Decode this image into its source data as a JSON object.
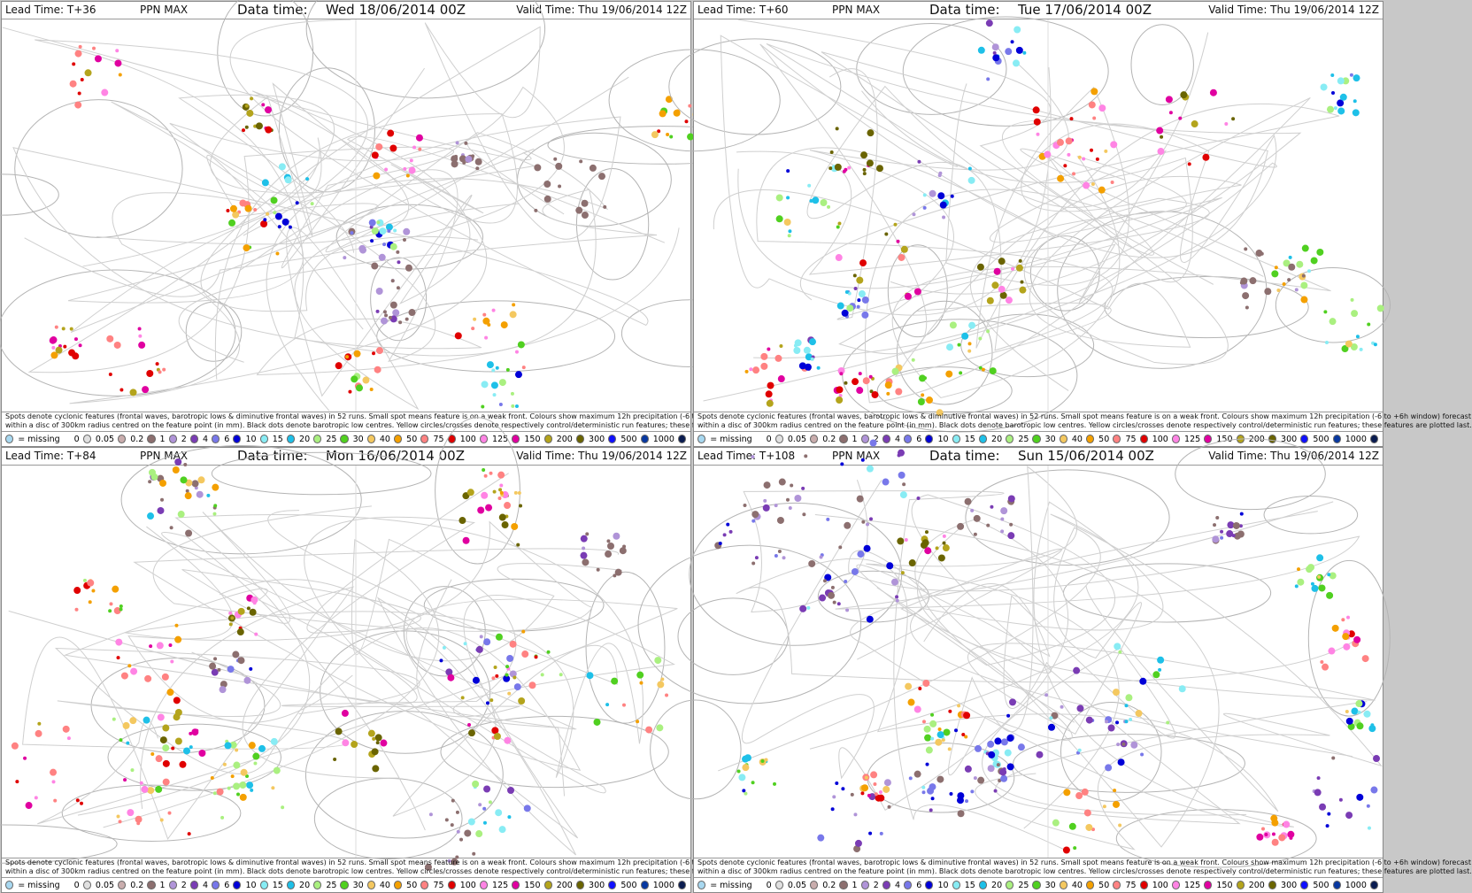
{
  "panels": [
    {
      "lead_time": "Lead Time: T+36",
      "product": "PPN MAX",
      "data_time_label": "Data time:",
      "data_time": "Wed 18/06/2014 00Z",
      "valid_time": "Valid Time: Thu 19/06/2014 12Z"
    },
    {
      "lead_time": "Lead Time: T+60",
      "product": "PPN MAX",
      "data_time_label": "Data time:",
      "data_time": "Tue 17/06/2014 00Z",
      "valid_time": "Valid Time: Thu 19/06/2014 12Z"
    },
    {
      "lead_time": "Lead Time: T+84",
      "product": "PPN MAX",
      "data_time_label": "Data time:",
      "data_time": "Mon 16/06/2014 00Z",
      "valid_time": "Valid Time: Thu 19/06/2014 12Z"
    },
    {
      "lead_time": "Lead Time: T+108",
      "product": "PPN MAX",
      "data_time_label": "Data time:",
      "data_time": "Sun 15/06/2014 00Z",
      "valid_time": "Valid Time: Thu 19/06/2014 12Z"
    }
  ],
  "caption": [
    "Spots denote cyclonic features (frontal waves, barotropic lows & diminutive frontal waves) in 52 runs. Small spot means feature is on a weak front. Colours show maximum 12h precipitation (-6 to +6h window) forecast",
    "within a disc of 300km radius centred on the feature point (in mm). Black dots denote barotropic low centres. Yellow circles/crosses denote respectively control/deterministic run features; these features are plotted last."
  ],
  "legend": {
    "missing": {
      "label": "= missing",
      "color": "#a8d8f0"
    },
    "items": [
      {
        "label": "0",
        "color": "#e0e0e0"
      },
      {
        "label": "0.05",
        "color": "#c9adad"
      },
      {
        "label": "0.2",
        "color": "#8c6f6f"
      },
      {
        "label": "1",
        "color": "#b094d8"
      },
      {
        "label": "2",
        "color": "#7a3cb4"
      },
      {
        "label": "4",
        "color": "#7878ea"
      },
      {
        "label": "6",
        "color": "#0000d8"
      },
      {
        "label": "10",
        "color": "#88ecf4"
      },
      {
        "label": "15",
        "color": "#1ec0e8"
      },
      {
        "label": "20",
        "color": "#aaf080"
      },
      {
        "label": "25",
        "color": "#50d020"
      },
      {
        "label": "30",
        "color": "#f4c860"
      },
      {
        "label": "40",
        "color": "#f4a000"
      },
      {
        "label": "50",
        "color": "#ff8282"
      },
      {
        "label": "75",
        "color": "#e00000"
      },
      {
        "label": "100",
        "color": "#ff84e4"
      },
      {
        "label": "125",
        "color": "#e000a0"
      },
      {
        "label": "150",
        "color": "#b4a41c"
      },
      {
        "label": "200",
        "color": "#6a6400"
      },
      {
        "label": "300",
        "color": "#1010ff"
      },
      {
        "label": "500",
        "color": "#0838a0"
      },
      {
        "label": "1000",
        "color": "#0a1c50"
      }
    ]
  }
}
